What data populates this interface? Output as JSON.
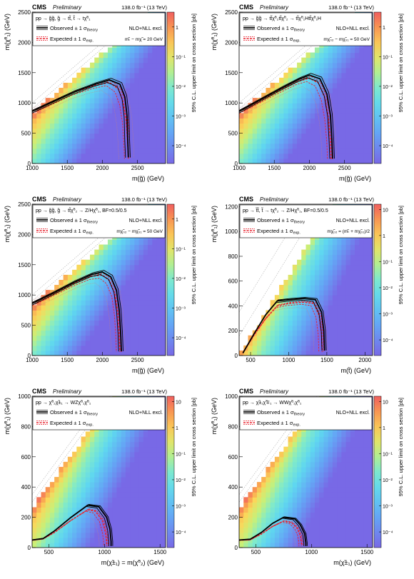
{
  "common": {
    "experiment": "CMS",
    "status": "Preliminary",
    "lumi": "138.0 fb⁻¹ (13 TeV)",
    "zlabel": "95% C.L. upper limit on cross section [pb]",
    "observed_label": "Observed ± 1 σ",
    "observed_sub": "theory",
    "expected_label": "Expected ± 1 σ",
    "expected_sub": "exp.",
    "nlo_label": "NLO+NLL excl.",
    "colors": {
      "observed": "#000000",
      "expected": "#e8232f",
      "diag": "#b0b0b0"
    }
  },
  "chart_data": [
    {
      "type": "heatmap",
      "process": "pp → g̃g̃, g̃ → tt̃, t̃ → tχ̃⁰₁",
      "mass_note": "mₜ̃ − mχ̃ = 20 GeV",
      "xlabel": "m(g̃) (GeV)",
      "ylabel": "m(χ̃⁰₁) (GeV)",
      "xlim": [
        1000,
        2900
      ],
      "ylim": [
        0,
        2500
      ],
      "xticks": [
        "1000",
        "1500",
        "2000",
        "2500"
      ],
      "yticks": [
        "0",
        "500",
        "1000",
        "1500",
        "2000",
        "2500"
      ],
      "zticks": [
        "10⁻⁴",
        "10⁻³",
        "10⁻²",
        "10⁻¹",
        "1"
      ],
      "zrange_log": [
        -4.6,
        0.5
      ],
      "diag_offset": 175,
      "observed": [
        [
          1000,
          860
        ],
        [
          1300,
          1020
        ],
        [
          1600,
          1180
        ],
        [
          1900,
          1310
        ],
        [
          2100,
          1380
        ],
        [
          2250,
          1310
        ],
        [
          2320,
          1100
        ],
        [
          2350,
          800
        ],
        [
          2360,
          400
        ],
        [
          2370,
          100
        ]
      ],
      "expected": [
        [
          1000,
          860
        ],
        [
          1300,
          1020
        ],
        [
          1600,
          1180
        ],
        [
          1900,
          1290
        ],
        [
          2100,
          1340
        ],
        [
          2230,
          1230
        ],
        [
          2300,
          1000
        ],
        [
          2340,
          700
        ],
        [
          2360,
          350
        ],
        [
          2370,
          80
        ]
      ]
    },
    {
      "type": "heatmap",
      "process": "pp → g̃g̃ → tt̃χ̃⁰₂tt̃χ̃⁰₂ → tt̃χ̃⁰₁Htt̃χ̃⁰₁H",
      "mass_note": "mχ̃₀₂ − mχ̃₀₁ = 50 GeV",
      "xlabel": "m(g̃) (GeV)",
      "ylabel": "m(χ̃⁰₁) (GeV)",
      "xlim": [
        1000,
        2900
      ],
      "ylim": [
        0,
        2500
      ],
      "xticks": [
        "1000",
        "1500",
        "2000",
        "2500"
      ],
      "yticks": [
        "0",
        "500",
        "1000",
        "1500",
        "2000",
        "2500"
      ],
      "zticks": [
        "10⁻⁴",
        "10⁻³",
        "10⁻²",
        "10⁻¹",
        "1"
      ],
      "zrange_log": [
        -4.6,
        0.5
      ],
      "diag_offset": 175,
      "observed": [
        [
          1000,
          860
        ],
        [
          1300,
          1050
        ],
        [
          1600,
          1240
        ],
        [
          1850,
          1390
        ],
        [
          2000,
          1460
        ],
        [
          2150,
          1400
        ],
        [
          2250,
          1150
        ],
        [
          2300,
          800
        ],
        [
          2320,
          400
        ],
        [
          2330,
          80
        ]
      ],
      "expected": [
        [
          1000,
          860
        ],
        [
          1300,
          1040
        ],
        [
          1600,
          1220
        ],
        [
          1850,
          1360
        ],
        [
          2000,
          1410
        ],
        [
          2130,
          1330
        ],
        [
          2220,
          1080
        ],
        [
          2270,
          760
        ],
        [
          2300,
          380
        ],
        [
          2310,
          70
        ]
      ]
    },
    {
      "type": "heatmap",
      "process": "pp → g̃g̃, g̃ → tt̃χ̃⁰₂ → Z/Hχ̃⁰₁, BF=0.5/0.5",
      "mass_note": "mχ̃₀₂ − mχ̃₀₁ = 50 GeV",
      "xlabel": "m(g̃) (GeV)",
      "ylabel": "m(χ̃⁰₁) (GeV)",
      "xlim": [
        1000,
        2900
      ],
      "ylim": [
        0,
        2500
      ],
      "xticks": [
        "1000",
        "1500",
        "2000",
        "2500"
      ],
      "yticks": [
        "0",
        "500",
        "1000",
        "1500",
        "2000",
        "2500"
      ],
      "zticks": [
        "10⁻⁴",
        "10⁻³",
        "10⁻²",
        "10⁻¹",
        "1"
      ],
      "zrange_log": [
        -4.6,
        0.5
      ],
      "diag_offset": 175,
      "observed": [
        [
          1000,
          860
        ],
        [
          1300,
          1030
        ],
        [
          1600,
          1210
        ],
        [
          1850,
          1340
        ],
        [
          2000,
          1380
        ],
        [
          2120,
          1300
        ],
        [
          2200,
          1080
        ],
        [
          2240,
          750
        ],
        [
          2260,
          380
        ],
        [
          2270,
          70
        ]
      ],
      "expected": [
        [
          1000,
          860
        ],
        [
          1300,
          1020
        ],
        [
          1600,
          1190
        ],
        [
          1850,
          1310
        ],
        [
          2000,
          1330
        ],
        [
          2100,
          1240
        ],
        [
          2180,
          1020
        ],
        [
          2220,
          700
        ],
        [
          2240,
          350
        ],
        [
          2250,
          60
        ]
      ]
    },
    {
      "type": "heatmap",
      "process": "pp → t̃t̃, t̃ → tχ̃⁰₂ → Z/Hχ̃⁰₁, BF=0.5/0.5",
      "mass_note": "mχ̃₀₂ = (mₜ̃ + mχ̃₀₁)/2",
      "xlabel": "m(t̃) (GeV)",
      "ylabel": "m(χ̃⁰₁) (GeV)",
      "xlim": [
        350,
        2100
      ],
      "ylim": [
        0,
        1220
      ],
      "xticks": [
        "500",
        "1000",
        "1500",
        "2000"
      ],
      "yticks": [
        "0",
        "200",
        "400",
        "600",
        "800",
        "1000",
        "1200"
      ],
      "zticks": [
        "10⁻⁴",
        "10⁻³",
        "10⁻²",
        "10⁻¹",
        "1",
        "10"
      ],
      "zrange_log": [
        -4.6,
        1.2
      ],
      "diag_offset": 350,
      "observed": [
        [
          400,
          20
        ],
        [
          550,
          180
        ],
        [
          700,
          330
        ],
        [
          850,
          440
        ],
        [
          1000,
          450
        ],
        [
          1200,
          460
        ],
        [
          1350,
          450
        ],
        [
          1430,
          350
        ],
        [
          1460,
          200
        ],
        [
          1470,
          40
        ]
      ],
      "expected": [
        [
          400,
          20
        ],
        [
          550,
          170
        ],
        [
          700,
          300
        ],
        [
          850,
          400
        ],
        [
          1000,
          420
        ],
        [
          1200,
          430
        ],
        [
          1330,
          420
        ],
        [
          1400,
          320
        ],
        [
          1430,
          180
        ],
        [
          1440,
          30
        ]
      ]
    },
    {
      "type": "heatmap",
      "process": "pp → χ̃⁰₂χ̃±₁ → WZχ̃⁰₁χ̃⁰₁",
      "mass_note": "",
      "xlabel": "m(χ̃±₁) = m(χ̃⁰₂) (GeV)",
      "ylabel": "m(χ̃⁰₁) (GeV)",
      "xlim": [
        350,
        1550
      ],
      "ylim": [
        0,
        1000
      ],
      "xticks": [
        "500",
        "1000",
        "1500"
      ],
      "yticks": [
        "0",
        "200",
        "400",
        "600",
        "800",
        "1000"
      ],
      "zticks": [
        "10⁻⁴",
        "10⁻³",
        "10⁻²",
        "10⁻¹",
        "1",
        "10"
      ],
      "zrange_log": [
        -4.6,
        1.2
      ],
      "diag_offset": 90,
      "observed": [
        [
          350,
          50
        ],
        [
          450,
          60
        ],
        [
          550,
          110
        ],
        [
          700,
          200
        ],
        [
          850,
          280
        ],
        [
          950,
          270
        ],
        [
          1020,
          200
        ],
        [
          1050,
          120
        ],
        [
          1060,
          40
        ],
        [
          1060,
          10
        ]
      ],
      "expected": [
        [
          350,
          50
        ],
        [
          450,
          58
        ],
        [
          550,
          100
        ],
        [
          700,
          180
        ],
        [
          850,
          250
        ],
        [
          920,
          240
        ],
        [
          980,
          180
        ],
        [
          1010,
          100
        ],
        [
          1020,
          40
        ],
        [
          1020,
          10
        ]
      ]
    },
    {
      "type": "heatmap",
      "process": "pp → χ̃±₁χ̃∓₁ → WWχ̃⁰₁χ̃⁰₁",
      "mass_note": "",
      "xlabel": "m(χ̃±₁) (GeV)",
      "ylabel": "m(χ̃⁰₁) (GeV)",
      "xlim": [
        350,
        1550
      ],
      "ylim": [
        0,
        1000
      ],
      "xticks": [
        "500",
        "1000",
        "1500"
      ],
      "yticks": [
        "0",
        "200",
        "400",
        "600",
        "800",
        "1000"
      ],
      "zticks": [
        "10⁻⁴",
        "10⁻³",
        "10⁻²",
        "10⁻¹",
        "1",
        "10"
      ],
      "zrange_log": [
        -4.6,
        1.2
      ],
      "diag_offset": 90,
      "observed": [
        [
          350,
          50
        ],
        [
          450,
          55
        ],
        [
          550,
          100
        ],
        [
          650,
          160
        ],
        [
          750,
          200
        ],
        [
          850,
          190
        ],
        [
          900,
          150
        ],
        [
          940,
          90
        ],
        [
          950,
          30
        ],
        [
          950,
          10
        ]
      ],
      "expected": [
        [
          350,
          50
        ],
        [
          450,
          52
        ],
        [
          550,
          90
        ],
        [
          650,
          140
        ],
        [
          750,
          175
        ],
        [
          820,
          165
        ],
        [
          870,
          130
        ],
        [
          900,
          80
        ],
        [
          910,
          30
        ],
        [
          910,
          10
        ]
      ]
    }
  ]
}
